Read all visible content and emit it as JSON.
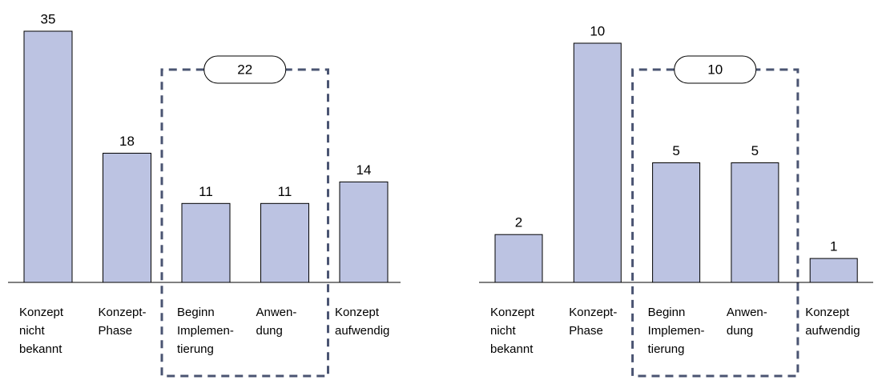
{
  "chart_data": [
    {
      "type": "bar",
      "categories": [
        [
          "Konzept",
          "nicht",
          "bekannt"
        ],
        [
          "Konzept-",
          "Phase"
        ],
        [
          "Beginn",
          "Implemen-",
          "tierung"
        ],
        [
          "Anwen-",
          "dung"
        ],
        [
          "Konzept",
          "aufwendig"
        ]
      ],
      "values": [
        35,
        18,
        11,
        11,
        14
      ],
      "color": "#bcc3e2",
      "ylim": [
        0,
        35
      ],
      "highlight_categories": [
        2,
        3
      ],
      "highlight_total": 22
    },
    {
      "type": "bar",
      "categories": [
        [
          "Konzept",
          "nicht",
          "bekannt"
        ],
        [
          "Konzept-",
          "Phase"
        ],
        [
          "Beginn",
          "Implemen-",
          "tierung"
        ],
        [
          "Anwen-",
          "dung"
        ],
        [
          "Konzept",
          "aufwendig"
        ]
      ],
      "values": [
        2,
        10,
        5,
        5,
        1
      ],
      "color": "#bcc3e2",
      "ylim": [
        0,
        10
      ],
      "highlight_categories": [
        2,
        3
      ],
      "highlight_total": 10
    }
  ]
}
